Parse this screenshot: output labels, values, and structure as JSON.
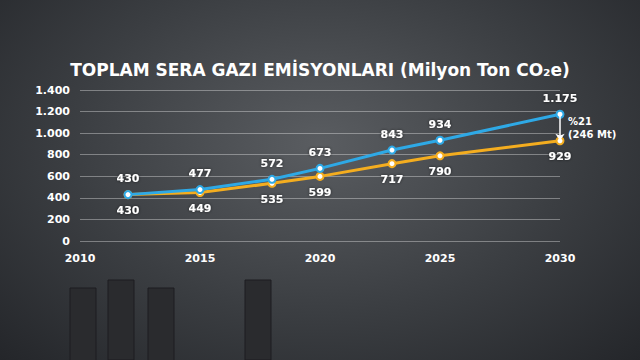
{
  "chart_data": {
    "type": "line",
    "title": "TOPLAM SERA GAZI EMİSYONLARI (Milyon Ton CO₂e)",
    "x": [
      2012,
      2015,
      2018,
      2020,
      2023,
      2025,
      2030
    ],
    "series": [
      {
        "color": "#2ea9e6",
        "marker": "circle",
        "values": [
          430,
          477,
          572,
          673,
          843,
          934,
          1175
        ],
        "value_labels": [
          "430",
          "477",
          "572",
          "673",
          "843",
          "934",
          "1.175"
        ]
      },
      {
        "color": "#f4ad1f",
        "marker": "circle",
        "values": [
          430,
          449,
          535,
          599,
          717,
          790,
          929
        ]
      }
    ],
    "xlim": [
      2010,
      2030
    ],
    "xticks": [
      2010,
      2015,
      2020,
      2025,
      2030
    ],
    "ylim": [
      0,
      1400
    ],
    "yticks": [
      0,
      200,
      400,
      600,
      800,
      {
        "value": 1000,
        "label": "1.000"
      },
      {
        "value": 1200,
        "label": "1.200"
      },
      {
        "value": 1400,
        "label": "1.400"
      }
    ],
    "grid": true,
    "data_labels": true,
    "annotations": [
      {
        "x": 2030,
        "from": 1175,
        "to": 929,
        "text": [
          "%21",
          "(246 Mt)"
        ]
      }
    ]
  }
}
